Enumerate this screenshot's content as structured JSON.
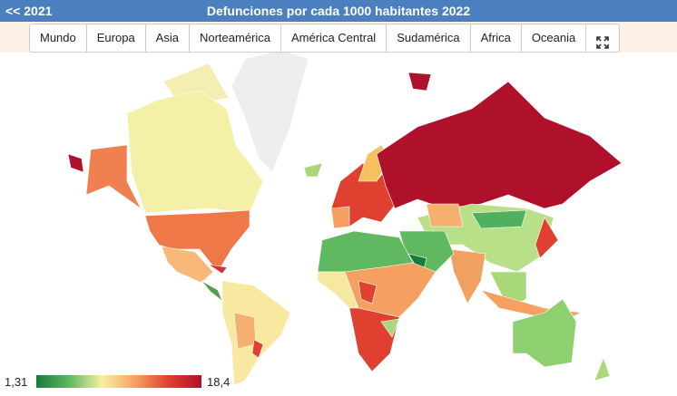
{
  "header": {
    "back": "<< 2021",
    "title": "Defunciones por cada 1000 habitantes 2022"
  },
  "tabs": [
    "Mundo",
    "Europa",
    "Asia",
    "Norteamérica",
    "América Central",
    "Sudamérica",
    "Africa",
    "Oceania"
  ],
  "legend": {
    "min": "1,31",
    "max": "18,4"
  }
}
